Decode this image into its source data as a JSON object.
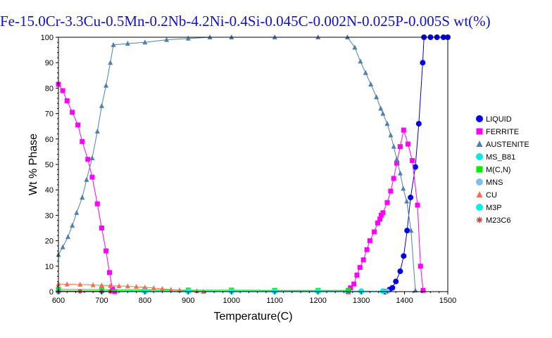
{
  "chart_data": {
    "type": "line",
    "title": "Fe-15.0Cr-3.3Cu-0.5Mn-0.2Nb-4.2Ni-0.4Si-0.045C-0.002N-0.025P-0.005S wt(%)",
    "xlabel": "Temperature(C)",
    "ylabel": "Wt % Phase",
    "xlim": [
      600,
      1500
    ],
    "ylim": [
      0,
      100
    ],
    "xticks": [
      600,
      700,
      800,
      900,
      1000,
      1100,
      1200,
      1300,
      1400,
      1500
    ],
    "yticks": [
      0,
      10,
      20,
      30,
      40,
      50,
      60,
      70,
      80,
      90,
      100
    ],
    "grid": false,
    "legend_position": "right",
    "series": [
      {
        "name": "LIQUID",
        "color": "#0000ee",
        "marker": "circle",
        "points": [
          [
            1355,
            0
          ],
          [
            1365,
            0.8
          ],
          [
            1372,
            1.5
          ],
          [
            1380,
            4
          ],
          [
            1390,
            8
          ],
          [
            1398,
            14
          ],
          [
            1406,
            24
          ],
          [
            1414,
            37
          ],
          [
            1425,
            49
          ],
          [
            1433,
            66
          ],
          [
            1442,
            90
          ],
          [
            1445,
            100
          ],
          [
            1460,
            100
          ],
          [
            1475,
            100
          ],
          [
            1490,
            100
          ],
          [
            1500,
            100
          ]
        ]
      },
      {
        "name": "FERRITE",
        "color": "#ff00ff",
        "marker": "square",
        "points": [
          [
            600,
            81.5
          ],
          [
            610,
            79
          ],
          [
            620,
            75
          ],
          [
            632,
            70.5
          ],
          [
            645,
            65.5
          ],
          [
            655,
            59
          ],
          [
            668,
            52
          ],
          [
            678,
            45
          ],
          [
            690,
            34.5
          ],
          [
            700,
            25
          ],
          [
            710,
            16
          ],
          [
            718,
            7.5
          ],
          [
            725,
            1
          ],
          [
            730,
            0
          ],
          [
            1270,
            0
          ],
          [
            1275,
            1.5
          ],
          [
            1283,
            3
          ],
          [
            1290,
            6.5
          ],
          [
            1297,
            9.5
          ],
          [
            1305,
            12.5
          ],
          [
            1313,
            16.5
          ],
          [
            1320,
            20
          ],
          [
            1330,
            23.5
          ],
          [
            1338,
            27
          ],
          [
            1343,
            28.5
          ],
          [
            1346,
            30
          ],
          [
            1350,
            31
          ],
          [
            1360,
            35
          ],
          [
            1368,
            39.5
          ],
          [
            1375,
            44.5
          ],
          [
            1382,
            50.5
          ],
          [
            1390,
            57
          ],
          [
            1398,
            63.5
          ],
          [
            1408,
            58
          ],
          [
            1418,
            51.5
          ],
          [
            1430,
            34
          ],
          [
            1437,
            10
          ],
          [
            1443,
            0.5
          ]
        ]
      },
      {
        "name": "AUSTENITE",
        "color": "#5080b0",
        "marker": "triangle",
        "points": [
          [
            600,
            14.5
          ],
          [
            610,
            17.5
          ],
          [
            622,
            21.5
          ],
          [
            632,
            26
          ],
          [
            642,
            31
          ],
          [
            655,
            37
          ],
          [
            665,
            44
          ],
          [
            678,
            52.5
          ],
          [
            690,
            63
          ],
          [
            700,
            73
          ],
          [
            710,
            81
          ],
          [
            720,
            90
          ],
          [
            727,
            97
          ],
          [
            760,
            97.5
          ],
          [
            800,
            98
          ],
          [
            850,
            99
          ],
          [
            900,
            99.5
          ],
          [
            950,
            100
          ],
          [
            1000,
            100
          ],
          [
            1100,
            100
          ],
          [
            1200,
            100
          ],
          [
            1268,
            100
          ],
          [
            1285,
            96
          ],
          [
            1298,
            90.5
          ],
          [
            1310,
            86
          ],
          [
            1322,
            81.5
          ],
          [
            1335,
            76.5
          ],
          [
            1345,
            72
          ],
          [
            1350,
            70
          ],
          [
            1360,
            66
          ],
          [
            1368,
            61.5
          ],
          [
            1375,
            57
          ],
          [
            1382,
            52
          ],
          [
            1390,
            46.5
          ],
          [
            1397,
            40.5
          ],
          [
            1405,
            35.5
          ],
          [
            1415,
            24
          ],
          [
            1425,
            0.5
          ]
        ]
      },
      {
        "name": "MS_B81",
        "color": "#00e8e8",
        "marker": "circle",
        "points": [
          [
            600,
            0.3
          ],
          [
            800,
            0.3
          ],
          [
            900,
            0.2
          ],
          [
            1000,
            0.2
          ],
          [
            1100,
            0.2
          ],
          [
            1200,
            0.2
          ],
          [
            1300,
            0.2
          ],
          [
            1350,
            0.2
          ]
        ]
      },
      {
        "name": "M(C,N)",
        "color": "#00ee00",
        "marker": "square",
        "points": [
          [
            600,
            0.9
          ],
          [
            700,
            0.8
          ],
          [
            800,
            0.7
          ],
          [
            900,
            0.6
          ],
          [
            1000,
            0.6
          ],
          [
            1100,
            0.5
          ],
          [
            1200,
            0.5
          ],
          [
            1270,
            0.5
          ]
        ]
      },
      {
        "name": "MNS",
        "color": "#80c0e8",
        "marker": "circle",
        "points": [
          [
            600,
            0.1
          ],
          [
            700,
            0.1
          ],
          [
            800,
            0.1
          ],
          [
            900,
            0.1
          ],
          [
            1000,
            0.1
          ],
          [
            1100,
            0.1
          ],
          [
            1200,
            0.1
          ],
          [
            1300,
            0.1
          ],
          [
            1360,
            0.1
          ]
        ]
      },
      {
        "name": "CU",
        "color": "#f07050",
        "marker": "triangle",
        "points": [
          [
            600,
            3
          ],
          [
            620,
            2.9
          ],
          [
            650,
            2.8
          ],
          [
            680,
            2.6
          ],
          [
            700,
            2.5
          ],
          [
            720,
            2.3
          ],
          [
            740,
            2.2
          ],
          [
            760,
            2.1
          ],
          [
            780,
            1.9
          ],
          [
            800,
            1.7
          ],
          [
            820,
            1.4
          ],
          [
            840,
            1.1
          ],
          [
            860,
            0.8
          ],
          [
            880,
            0.6
          ],
          [
            900,
            0.3
          ],
          [
            920,
            0.2
          ],
          [
            935,
            0
          ]
        ]
      },
      {
        "name": "M3P",
        "color": "#00f0f0",
        "marker": "circle",
        "points": [
          [
            600,
            0.1
          ],
          [
            700,
            0.1
          ],
          [
            800,
            0.1
          ],
          [
            900,
            0.1
          ],
          [
            1000,
            0.1
          ],
          [
            1100,
            0.1
          ],
          [
            1200,
            0.1
          ],
          [
            1300,
            0.1
          ]
        ]
      },
      {
        "name": "M23C6",
        "color": "#b04040",
        "marker": "star",
        "points": [
          [
            600,
            0.1
          ],
          [
            650,
            0.1
          ],
          [
            700,
            0.1
          ],
          [
            720,
            0
          ]
        ]
      }
    ]
  }
}
